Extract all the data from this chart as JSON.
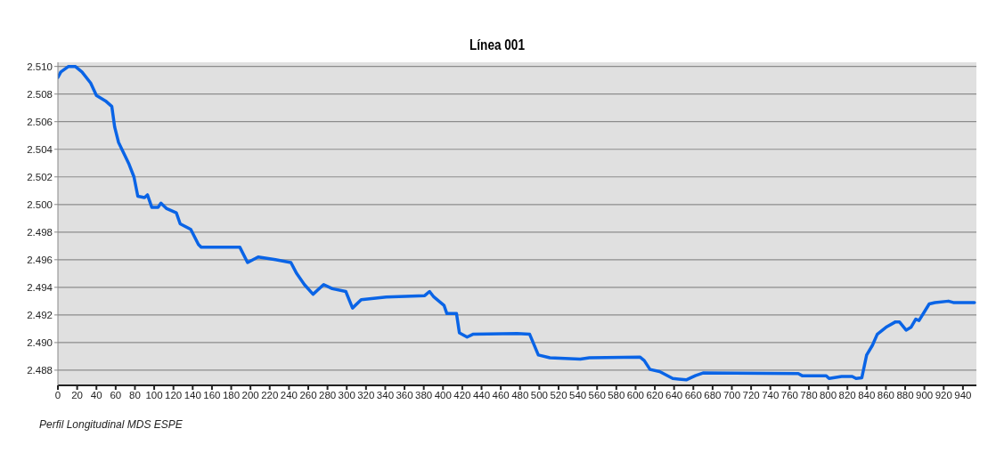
{
  "chart_data": {
    "type": "line",
    "title": "Línea 001",
    "annotations": [
      "Perfil Longitudinal MDS ESPE"
    ],
    "xlim": [
      0,
      954
    ],
    "xticks": [
      0,
      20,
      40,
      60,
      80,
      100,
      120,
      140,
      160,
      180,
      200,
      220,
      240,
      260,
      280,
      300,
      320,
      340,
      360,
      380,
      400,
      420,
      440,
      460,
      480,
      500,
      520,
      540,
      560,
      580,
      600,
      620,
      640,
      660,
      680,
      700,
      720,
      740,
      760,
      780,
      800,
      820,
      840,
      860,
      880,
      900,
      920,
      940
    ],
    "ylim": [
      2486.9,
      2510.3
    ],
    "yticks": [
      {
        "value": 2488,
        "label": "2.488"
      },
      {
        "value": 2490,
        "label": "2.490"
      },
      {
        "value": 2492,
        "label": "2.492"
      },
      {
        "value": 2494,
        "label": "2.494"
      },
      {
        "value": 2496,
        "label": "2.496"
      },
      {
        "value": 2498,
        "label": "2.498"
      },
      {
        "value": 2500,
        "label": "2.500"
      },
      {
        "value": 2502,
        "label": "2.502"
      },
      {
        "value": 2504,
        "label": "2.504"
      },
      {
        "value": 2506,
        "label": "2.506"
      },
      {
        "value": 2508,
        "label": "2.508"
      },
      {
        "value": 2510,
        "label": "2.510"
      }
    ],
    "grid": "y",
    "marker": "none",
    "line_style": "solid",
    "series": [
      {
        "color": "#0a64e6",
        "x": [
          0,
          3,
          11,
          18,
          25,
          34,
          40,
          49.5,
          56,
          59,
          63,
          74,
          79,
          83,
          90,
          93,
          97.5,
          104,
          107,
          113,
          123,
          127,
          138,
          146,
          149,
          189,
          197,
          208,
          226,
          242,
          248,
          256,
          265,
          276,
          285,
          299,
          306,
          315,
          341,
          381,
          386,
          390.5,
          401,
          404,
          414,
          417,
          425,
          431,
          477,
          490,
          499,
          511,
          542.5,
          552,
          604.5,
          609,
          615,
          625,
          638.6,
          652.6,
          662,
          670,
          769,
          773,
          798,
          801,
          814,
          825,
          829,
          835,
          840,
          846,
          851,
          860,
          870,
          874,
          881,
          886,
          891,
          894.4,
          900.6,
          905,
          911,
          925,
          930,
          952
        ],
        "values": [
          2509.2,
          2509.6,
          2510.0,
          2510.0,
          2509.6,
          2508.8,
          2507.9,
          2507.5,
          2507.1,
          2505.6,
          2504.5,
          2502.9,
          2502.0,
          2500.6,
          2500.5,
          2500.7,
          2499.8,
          2499.8,
          2500.1,
          2499.7,
          2499.4,
          2498.6,
          2498.2,
          2497.1,
          2496.9,
          2496.9,
          2495.8,
          2496.2,
          2496.0,
          2495.8,
          2495.0,
          2494.2,
          2493.5,
          2494.2,
          2493.9,
          2493.7,
          2492.5,
          2493.1,
          2493.3,
          2493.4,
          2493.7,
          2493.3,
          2492.7,
          2492.1,
          2492.1,
          2490.7,
          2490.4,
          2490.6,
          2490.65,
          2490.6,
          2489.1,
          2488.9,
          2488.8,
          2488.9,
          2488.95,
          2488.7,
          2488.05,
          2487.9,
          2487.4,
          2487.3,
          2487.6,
          2487.8,
          2487.75,
          2487.6,
          2487.6,
          2487.4,
          2487.55,
          2487.55,
          2487.4,
          2487.45,
          2489.1,
          2489.8,
          2490.6,
          2491.1,
          2491.5,
          2491.5,
          2490.9,
          2491.1,
          2491.7,
          2491.6,
          2492.3,
          2492.8,
          2492.9,
          2493.0,
          2492.9,
          2492.9
        ]
      }
    ]
  }
}
